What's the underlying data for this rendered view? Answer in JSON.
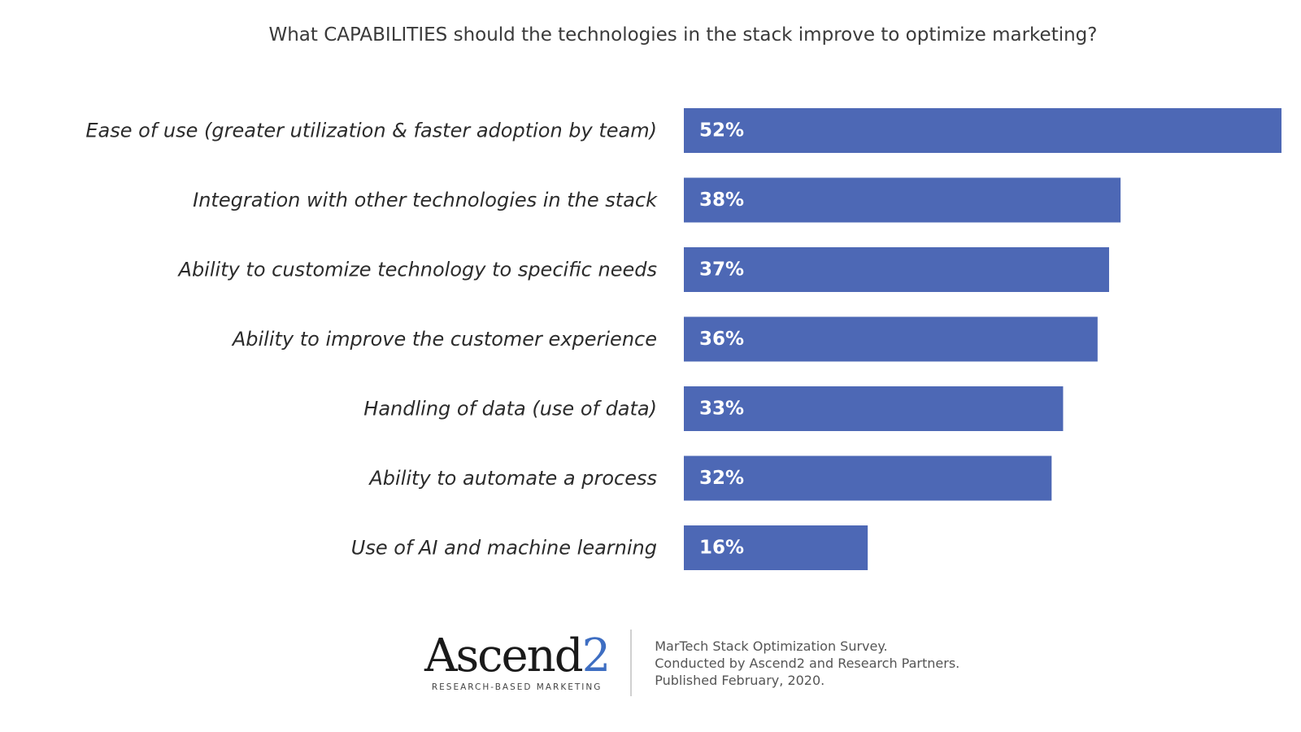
{
  "chart_data": {
    "type": "bar",
    "orientation": "horizontal",
    "title": "What CAPABILITIES should the technologies in the stack improve to optimize marketing?",
    "categories": [
      "Ease of use (greater utilization & faster adoption by team)",
      "Integration with other technologies in the stack",
      "Ability to customize technology to specific needs",
      "Ability to improve the customer experience",
      "Handling of data (use of data)",
      "Ability to automate a process",
      "Use of AI and machine learning"
    ],
    "values": [
      52,
      38,
      37,
      36,
      33,
      32,
      16
    ],
    "value_labels": [
      "52%",
      "38%",
      "37%",
      "36%",
      "33%",
      "32%",
      "16%"
    ],
    "value_unit": "%",
    "xlim": [
      0,
      52
    ],
    "grid": false,
    "legend": "none",
    "colors": {
      "bar": "#4d68b5",
      "value_text": "#ffffff"
    }
  },
  "footer": {
    "logo": {
      "word": "Ascend",
      "number": "2",
      "tagline": "RESEARCH-BASED MARKETING"
    },
    "notes": [
      "MarTech Stack Optimization Survey.",
      "Conducted  by Ascend2 and Research Partners.",
      "Published February, 2020."
    ]
  }
}
